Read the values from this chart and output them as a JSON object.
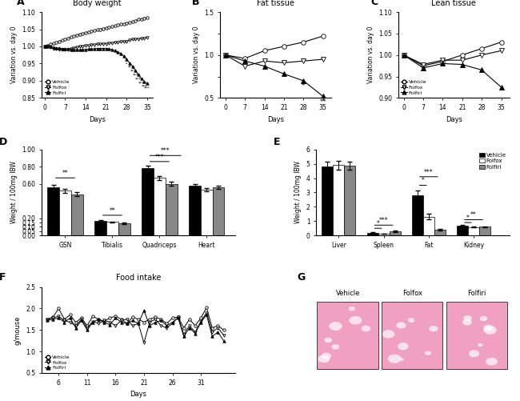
{
  "title_A": "Body weight",
  "title_B": "Fat tissue",
  "title_C": "Lean tissue",
  "title_F": "Food intake",
  "label_A": "A",
  "label_B": "B",
  "label_C": "C",
  "label_D": "D",
  "label_E": "E",
  "label_F": "F",
  "label_G": "G",
  "xlabel_ABC": "Days",
  "ylabel_ABC": "Variation vs. day 0",
  "xlabel_F": "Days",
  "ylabel_F": "g/mouse",
  "ylabel_DE": "Weight / 100mg IBW",
  "bw_days": [
    0,
    1,
    2,
    3,
    4,
    5,
    6,
    7,
    8,
    9,
    10,
    11,
    12,
    13,
    14,
    15,
    16,
    17,
    18,
    19,
    20,
    21,
    22,
    23,
    24,
    25,
    26,
    27,
    28,
    29,
    30,
    31,
    32,
    33,
    34,
    35
  ],
  "bw_vehicle": [
    1.0,
    1.003,
    1.006,
    1.009,
    1.012,
    1.015,
    1.018,
    1.021,
    1.024,
    1.027,
    1.03,
    1.033,
    1.036,
    1.038,
    1.04,
    1.042,
    1.044,
    1.046,
    1.048,
    1.05,
    1.052,
    1.054,
    1.056,
    1.058,
    1.06,
    1.062,
    1.064,
    1.066,
    1.068,
    1.07,
    1.072,
    1.075,
    1.078,
    1.08,
    1.082,
    1.084
  ],
  "bw_folfox": [
    1.0,
    1.0,
    0.997,
    0.994,
    0.992,
    0.991,
    0.99,
    0.99,
    0.991,
    0.993,
    0.995,
    0.997,
    0.999,
    1.001,
    1.002,
    1.003,
    1.004,
    1.005,
    1.006,
    1.007,
    1.007,
    1.008,
    1.009,
    1.01,
    1.011,
    1.012,
    1.013,
    1.014,
    1.015,
    1.018,
    1.02,
    1.021,
    1.022,
    1.023,
    1.024,
    1.025
  ],
  "bw_folfiri": [
    1.0,
    1.001,
    0.999,
    0.997,
    0.996,
    0.995,
    0.994,
    0.993,
    0.992,
    0.991,
    0.99,
    0.99,
    0.99,
    0.991,
    0.991,
    0.992,
    0.993,
    0.993,
    0.994,
    0.994,
    0.994,
    0.994,
    0.993,
    0.991,
    0.988,
    0.984,
    0.979,
    0.972,
    0.962,
    0.952,
    0.942,
    0.93,
    0.918,
    0.906,
    0.898,
    0.892
  ],
  "fat_days": [
    0,
    7,
    14,
    21,
    28,
    35
  ],
  "fat_vehicle": [
    1.0,
    0.96,
    1.05,
    1.1,
    1.15,
    1.22
  ],
  "fat_folfox": [
    1.0,
    0.87,
    0.93,
    0.91,
    0.93,
    0.95
  ],
  "fat_folfiri": [
    1.0,
    0.93,
    0.87,
    0.78,
    0.7,
    0.52
  ],
  "lean_days": [
    0,
    7,
    14,
    21,
    28,
    35
  ],
  "lean_vehicle": [
    1.0,
    0.975,
    0.985,
    1.0,
    1.015,
    1.03
  ],
  "lean_folfox": [
    1.0,
    0.978,
    0.988,
    0.988,
    1.0,
    1.01
  ],
  "lean_folfiri": [
    1.0,
    0.97,
    0.98,
    0.978,
    0.965,
    0.925
  ],
  "bar_D_cats": [
    "GSN",
    "Tibialis",
    "Quadriceps",
    "Heart"
  ],
  "bar_D_vehicle": [
    0.56,
    0.168,
    0.78,
    0.58
  ],
  "bar_D_folfox": [
    0.52,
    0.157,
    0.67,
    0.535
  ],
  "bar_D_folfiri": [
    0.48,
    0.14,
    0.6,
    0.56
  ],
  "bar_D_vehicle_err": [
    0.03,
    0.008,
    0.03,
    0.02
  ],
  "bar_D_folfox_err": [
    0.025,
    0.007,
    0.025,
    0.018
  ],
  "bar_D_folfiri_err": [
    0.025,
    0.008,
    0.025,
    0.018
  ],
  "bar_E_cats": [
    "Liver",
    "Spleen",
    "Fat",
    "Kidney"
  ],
  "bar_E_vehicle": [
    4.8,
    0.2,
    2.8,
    0.68
  ],
  "bar_E_folfox": [
    4.9,
    0.12,
    1.3,
    0.58
  ],
  "bar_E_folfiri": [
    4.85,
    0.3,
    0.4,
    0.6
  ],
  "bar_E_vehicle_err": [
    0.35,
    0.03,
    0.35,
    0.05
  ],
  "bar_E_folfox_err": [
    0.3,
    0.02,
    0.2,
    0.04
  ],
  "bar_E_folfiri_err": [
    0.28,
    0.04,
    0.08,
    0.04
  ],
  "food_days": [
    4,
    5,
    6,
    7,
    8,
    9,
    10,
    11,
    12,
    13,
    14,
    15,
    16,
    17,
    18,
    19,
    20,
    21,
    22,
    23,
    24,
    25,
    26,
    27,
    28,
    29,
    30,
    31,
    32,
    33,
    34,
    35
  ],
  "food_vehicle": [
    1.75,
    1.8,
    2.0,
    1.75,
    1.85,
    1.68,
    1.78,
    1.6,
    1.82,
    1.75,
    1.7,
    1.78,
    1.82,
    1.75,
    1.65,
    1.8,
    1.75,
    1.68,
    1.75,
    1.8,
    1.75,
    1.65,
    1.78,
    1.8,
    1.55,
    1.75,
    1.6,
    1.78,
    2.02,
    1.55,
    1.6,
    1.5
  ],
  "food_folfox": [
    1.75,
    1.78,
    1.82,
    1.72,
    1.68,
    1.6,
    1.75,
    1.55,
    1.7,
    1.65,
    1.72,
    1.68,
    1.6,
    1.72,
    1.75,
    1.6,
    1.65,
    1.2,
    1.68,
    1.75,
    1.6,
    1.55,
    1.65,
    1.8,
    1.4,
    1.6,
    1.45,
    1.7,
    1.9,
    1.45,
    1.55,
    1.38
  ],
  "food_folfiri": [
    1.72,
    1.75,
    1.78,
    1.68,
    1.78,
    1.55,
    1.72,
    1.5,
    1.68,
    1.75,
    1.68,
    1.62,
    1.78,
    1.68,
    1.65,
    1.72,
    1.65,
    1.95,
    1.6,
    1.68,
    1.72,
    1.6,
    1.68,
    1.78,
    1.35,
    1.55,
    1.42,
    1.68,
    1.85,
    1.35,
    1.45,
    1.25
  ],
  "tissue_labels": [
    "Vehicle",
    "Folfox",
    "Folfiri"
  ],
  "tissue_colors": [
    "#f0a0b8",
    "#f0a0b8",
    "#f0a0b8"
  ]
}
